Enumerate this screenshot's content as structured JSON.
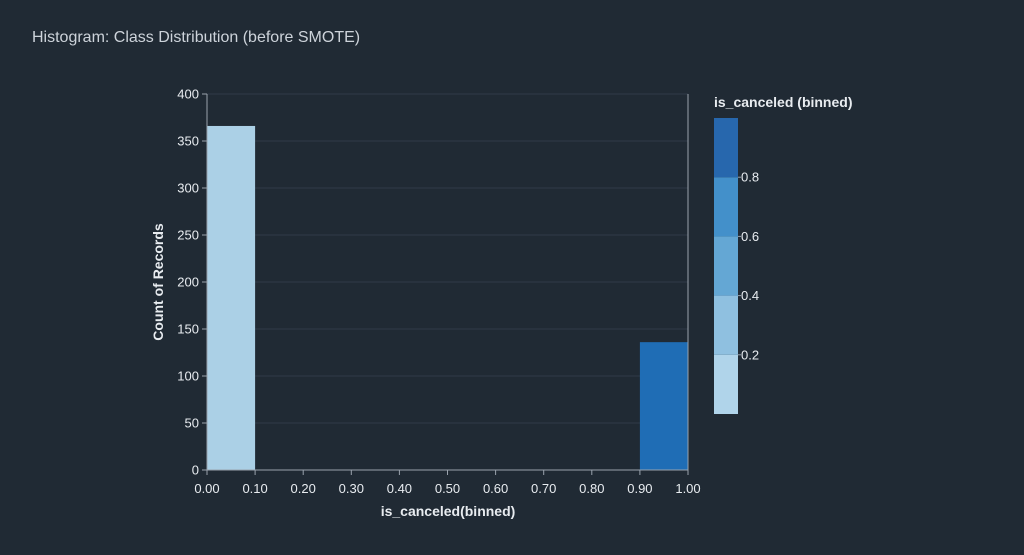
{
  "page": {
    "title": "Histogram: Class Distribution (before SMOTE)"
  },
  "chart_data": {
    "type": "bar",
    "title": "",
    "xlabel": "is_canceled(binned)",
    "ylabel": "Count of Records",
    "xlim": [
      0,
      1
    ],
    "ylim": [
      0,
      400
    ],
    "bins": [
      {
        "start": 0.0,
        "end": 0.1,
        "value": 366,
        "color": "#abd0e6"
      },
      {
        "start": 0.1,
        "end": 0.2,
        "value": 0,
        "color": "#abd0e6"
      },
      {
        "start": 0.2,
        "end": 0.3,
        "value": 0,
        "color": "#8dbfdd"
      },
      {
        "start": 0.3,
        "end": 0.4,
        "value": 0,
        "color": "#8dbfdd"
      },
      {
        "start": 0.4,
        "end": 0.5,
        "value": 0,
        "color": "#5ba2d0"
      },
      {
        "start": 0.5,
        "end": 0.6,
        "value": 0,
        "color": "#5ba2d0"
      },
      {
        "start": 0.6,
        "end": 0.7,
        "value": 0,
        "color": "#3f8fc5"
      },
      {
        "start": 0.7,
        "end": 0.8,
        "value": 0,
        "color": "#3f8fc5"
      },
      {
        "start": 0.8,
        "end": 0.9,
        "value": 0,
        "color": "#2470b5"
      },
      {
        "start": 0.9,
        "end": 1.0,
        "value": 136,
        "color": "#1f6db5"
      }
    ],
    "x_ticks": [
      "0.00",
      "0.10",
      "0.20",
      "0.30",
      "0.40",
      "0.50",
      "0.60",
      "0.70",
      "0.80",
      "0.90",
      "1.00"
    ],
    "y_ticks": [
      0,
      50,
      100,
      150,
      200,
      250,
      300,
      350,
      400
    ],
    "grid": true,
    "legend": {
      "title": "is_canceled (binned)",
      "placement": "right",
      "labels": [
        "0.2",
        "0.4",
        "0.6",
        "0.8"
      ],
      "colors": [
        "#b0d4ea",
        "#8fc0e0",
        "#64a7d4",
        "#4390ca",
        "#2767ad"
      ]
    }
  }
}
